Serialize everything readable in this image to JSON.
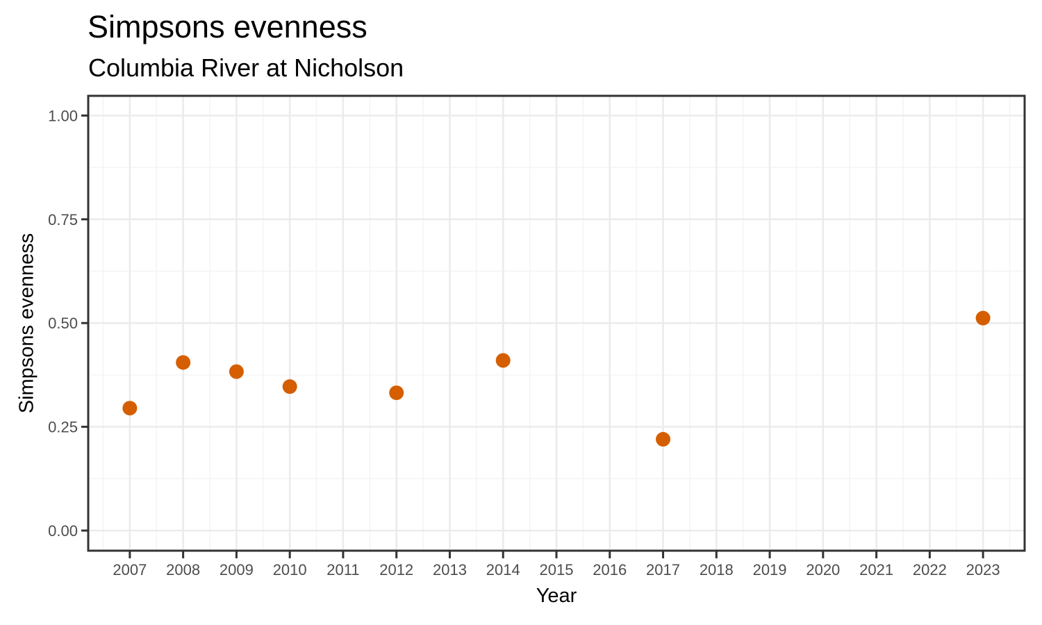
{
  "title": "Simpsons evenness",
  "subtitle": "Columbia River at Nicholson",
  "chart_data": {
    "type": "scatter",
    "title": "Simpsons evenness",
    "subtitle": "Columbia River at Nicholson",
    "xlabel": "Year",
    "ylabel": "Simpsons evenness",
    "x": [
      2007,
      2008,
      2009,
      2010,
      2012,
      2014,
      2017,
      2023
    ],
    "y": [
      0.295,
      0.405,
      0.383,
      0.347,
      0.332,
      0.41,
      0.22,
      0.512
    ],
    "x_ticks": [
      2007,
      2008,
      2009,
      2010,
      2011,
      2012,
      2013,
      2014,
      2015,
      2016,
      2017,
      2018,
      2019,
      2020,
      2021,
      2022,
      2023
    ],
    "x_tick_labels": [
      "2007",
      "2008",
      "2009",
      "2010",
      "2011",
      "2012",
      "2013",
      "2014",
      "2015",
      "2016",
      "2017",
      "2018",
      "2019",
      "2020",
      "2021",
      "2022",
      "2023"
    ],
    "y_ticks": [
      0,
      0.25,
      0.5,
      0.75,
      1
    ],
    "y_tick_labels": [
      "0.00",
      "0.25",
      "0.50",
      "0.75",
      "1.00"
    ],
    "xlim": [
      2006.22,
      2023.78
    ],
    "ylim": [
      -0.0485,
      1.0475
    ],
    "grid": "major+minor",
    "legend": "none",
    "colors": {
      "point": "#D55E00",
      "grid_major": "#EBEBEB",
      "grid_minor": "#F4F4F4",
      "panel_border": "#333333",
      "tick_mark": "#333333",
      "tick_label": "#4D4D4D",
      "text": "#000000",
      "background": "#FFFFFF"
    }
  }
}
